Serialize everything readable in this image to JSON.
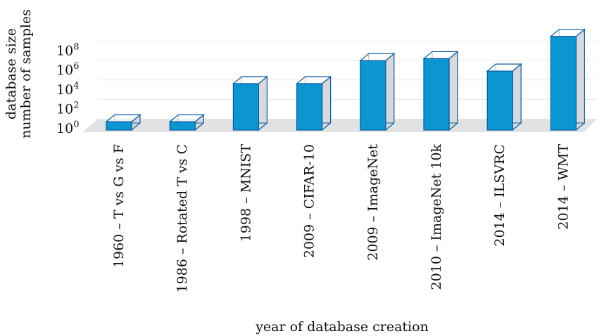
{
  "chart_data": {
    "type": "bar",
    "categories": [
      "1960 – T vs G vs F",
      "1986 – Rotated T vs C",
      "1998 – MNIST",
      "2009 – CIFAR-10",
      "2009 – ImageNet",
      "2010 – ImageNet 10k",
      "2014 – ILSVRC",
      "2014 – WMT"
    ],
    "values": [
      7,
      7,
      60000,
      60000,
      14000000,
      23000000,
      1200000,
      4500000000
    ],
    "log_exponents": [
      0.85,
      0.85,
      4.78,
      4.78,
      7.15,
      7.36,
      6.08,
      9.65
    ],
    "ylabel_line1": "database size",
    "ylabel_line2": "number of samples",
    "xlabel": "year of database creation",
    "yscale": "log",
    "ylim": [
      1,
      10000000000
    ],
    "ytick_exponents": [
      0,
      2,
      4,
      6,
      8
    ],
    "ytick_base": "10",
    "grid": true,
    "bar_color": "#0b96d2",
    "bar_edge_color": "#0a5a9c",
    "side_color": "#d6d9de",
    "floor_color": "#e1e2e4"
  }
}
